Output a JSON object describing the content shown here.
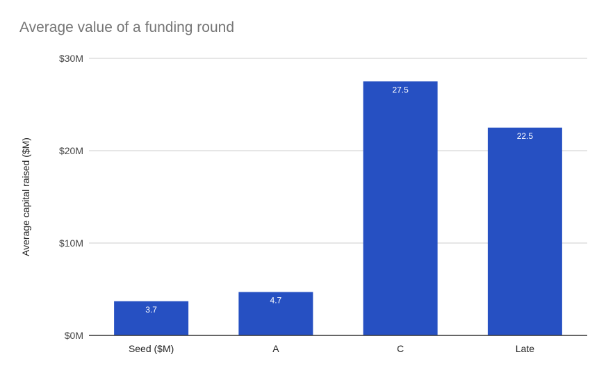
{
  "chart_data": {
    "type": "bar",
    "title": "Average value of a funding round",
    "xlabel": "",
    "ylabel": "Average capital raised ($M)",
    "categories": [
      "Seed ($M)",
      "A",
      "C",
      "Late"
    ],
    "values": [
      3.7,
      4.7,
      27.5,
      22.5
    ],
    "data_labels": [
      "3.7",
      "4.7",
      "27.5",
      "22.5"
    ],
    "ylim": [
      0,
      30
    ],
    "yticks": [
      0,
      10,
      20,
      30
    ],
    "ytick_labels": [
      "$0M",
      "$10M",
      "$20M",
      "$30M"
    ],
    "grid": true,
    "legend": "none",
    "bar_color": "#2650c2",
    "grid_color": "#cccccc",
    "axis_color": "#333333"
  }
}
